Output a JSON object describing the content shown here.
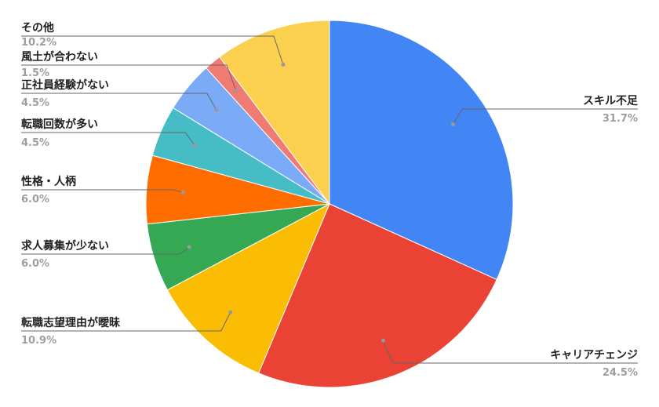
{
  "chart_data": {
    "type": "pie",
    "start": "top",
    "direction": "clockwise",
    "legend": "labels with leader lines",
    "slices": [
      {
        "label": "スキル不足",
        "value": 31.7,
        "display": "31.7%",
        "color": "#4285F4"
      },
      {
        "label": "キャリアチェンジ",
        "value": 24.5,
        "display": "24.5%",
        "color": "#EA4335"
      },
      {
        "label": "転職志望理由が曖昧",
        "value": 10.9,
        "display": "10.9%",
        "color": "#FBBC04"
      },
      {
        "label": "求人募集が少ない",
        "value": 6.0,
        "display": "6.0%",
        "color": "#34A853"
      },
      {
        "label": "性格・人柄",
        "value": 6.0,
        "display": "6.0%",
        "color": "#FF6D01"
      },
      {
        "label": "転職回数が多い",
        "value": 4.5,
        "display": "4.5%",
        "color": "#46BDC6"
      },
      {
        "label": "正社員経験がない",
        "value": 4.5,
        "display": "4.5%",
        "color": "#7BAAF7"
      },
      {
        "label": "風土が合わない",
        "value": 1.5,
        "display": "1.5%",
        "color": "#F07B72"
      },
      {
        "label": "その他",
        "value": 10.2,
        "display": "10.2%",
        "color": "#FCD04F"
      }
    ]
  }
}
